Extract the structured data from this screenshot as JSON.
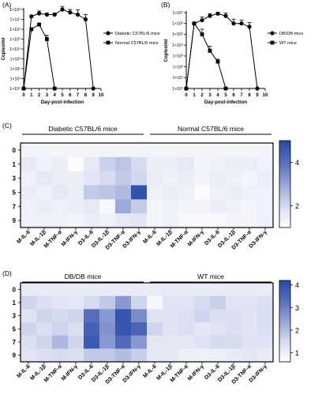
{
  "chart_data": [
    {
      "panel": "(A)",
      "type": "line",
      "ylabel": "Copies/ml",
      "xlabel": "Day-post-infection",
      "x_ticks": [
        "0",
        "1",
        "2",
        "3",
        "4",
        "5",
        "6",
        "7",
        "8",
        "9",
        "10"
      ],
      "y_tick_labels": [
        "1×10⁰",
        "1×10¹",
        "1×10²",
        "1×10³",
        "1×10⁴",
        "1×10⁵",
        "1×10⁶",
        "1×10⁷",
        "1×10⁸"
      ],
      "y_scale": "log10",
      "ylim": [
        1,
        100000000
      ],
      "xlim": [
        0,
        10
      ],
      "legend_position": "right",
      "series": [
        {
          "name": "Diabetic C57BL/6 mice",
          "marker": "circle",
          "x": [
            0,
            1,
            2,
            3,
            4,
            5,
            6,
            7,
            8,
            9
          ],
          "y": [
            1,
            20000000,
            40000000,
            30000000,
            30000000,
            100000000,
            50000000,
            30000000,
            10000000,
            1
          ],
          "err": [
            0,
            0,
            30000000,
            15000000,
            15000000,
            100000000,
            50000000,
            60000000,
            20000000,
            0
          ]
        },
        {
          "name": "Normal C57BL/6 mice",
          "marker": "square",
          "x": [
            0,
            1,
            2,
            3,
            4
          ],
          "y": [
            1,
            1000000,
            3000000,
            100000,
            1
          ],
          "err": [
            0,
            0,
            1000000,
            150000,
            0
          ]
        }
      ]
    },
    {
      "panel": "(B)",
      "type": "line",
      "ylabel": "Copies/ml",
      "xlabel": "Day-post-infection",
      "x_ticks": [
        "0",
        "1",
        "2",
        "3",
        "4",
        "5",
        "6",
        "7",
        "8",
        "9",
        "10"
      ],
      "y_tick_labels": [
        "1×10⁰",
        "1×10¹",
        "1×10²",
        "1×10³",
        "1×10⁴",
        "1×10⁵",
        "1×10⁶",
        "1×10⁷"
      ],
      "y_scale": "log10",
      "ylim": [
        1,
        10000000
      ],
      "xlim": [
        0,
        10
      ],
      "legend_position": "right",
      "series": [
        {
          "name": "DB/DB mice",
          "marker": "circle",
          "x": [
            0,
            1,
            2,
            3,
            4,
            5,
            6,
            7,
            8,
            9
          ],
          "y": [
            1,
            1000000,
            2000000,
            5000000,
            8000000,
            5000000,
            1000000,
            1000000,
            500000,
            1
          ],
          "err": [
            0,
            0,
            2000000,
            3000000,
            3000000,
            4000000,
            1500000,
            1000000,
            700000,
            0
          ]
        },
        {
          "name": "WT mice",
          "marker": "square",
          "x": [
            0,
            1,
            2,
            3,
            4,
            5
          ],
          "y": [
            1,
            1000000,
            100000,
            3000,
            300,
            1
          ],
          "err": [
            0,
            0,
            200000,
            5000,
            200,
            0
          ]
        }
      ]
    },
    {
      "panel": "(C)",
      "type": "heatmap",
      "group_labels": [
        "Diabetic C57BL/6 mice",
        "Normal C57BL/6 mice"
      ],
      "rows": [
        "0",
        "1",
        "3",
        "5",
        "7",
        "9"
      ],
      "columns": [
        "M-IL-6",
        "M-IL-1β",
        "M-TNF-α",
        "M-IFN-γ",
        "D3-IL-6",
        "D3-IL-1β",
        "D3-TNF-α",
        "D3-IFN-γ",
        "M-IL-6",
        "M-IL-1β",
        "M-TNF-α",
        "M-IFN-γ",
        "D3-IL-6",
        "D3-IL-1β",
        "D3-TNF-α",
        "D3-IFN-γ"
      ],
      "values": [
        [
          1.3,
          1.3,
          1.3,
          1.3,
          1.3,
          1.3,
          1.3,
          1.3,
          1.3,
          1.3,
          1.3,
          1.3,
          1.3,
          1.3,
          1.3,
          1.3
        ],
        [
          1.6,
          1.4,
          1.5,
          1.1,
          1.6,
          2.2,
          2.4,
          2.0,
          1.5,
          1.5,
          1.6,
          1.3,
          1.4,
          1.5,
          1.5,
          1.4
        ],
        [
          1.4,
          1.6,
          1.5,
          1.5,
          1.7,
          2.0,
          2.3,
          2.1,
          1.5,
          1.4,
          1.5,
          1.3,
          1.5,
          1.4,
          1.3,
          1.5
        ],
        [
          1.5,
          1.4,
          1.6,
          1.5,
          2.3,
          2.4,
          2.6,
          4.8,
          1.4,
          1.5,
          1.4,
          1.1,
          1.4,
          1.5,
          1.4,
          1.4
        ],
        [
          1.4,
          1.5,
          1.4,
          1.5,
          1.6,
          1.2,
          2.9,
          2.3,
          1.3,
          1.4,
          1.3,
          1.3,
          1.5,
          1.4,
          1.3,
          1.4
        ],
        [
          1.4,
          1.4,
          1.4,
          1.3,
          1.5,
          1.4,
          1.6,
          1.7,
          1.3,
          1.4,
          1.2,
          1.2,
          1.2,
          1.3,
          1.3,
          1.4
        ]
      ],
      "colorbar_ticks": [
        "2",
        "4"
      ],
      "vmin": 1.0,
      "vmax": 5.0
    },
    {
      "panel": "(D)",
      "type": "heatmap",
      "group_labels": [
        "DB/DB mice",
        "WT mice"
      ],
      "rows": [
        "0",
        "1",
        "3",
        "5",
        "7",
        "9"
      ],
      "columns": [
        "M-IL-6",
        "M-IL-1β",
        "M-TNF-α",
        "M-IFN-γ",
        "D3-IL-6",
        "D3-IL-1β",
        "D3-TNF-α",
        "D3-IFN-γ",
        "M-IL-6",
        "M-IL-1β",
        "M-TNF-α",
        "M-IFN-γ",
        "D3-IL-6",
        "D3-IL-1β",
        "D3-TNF-α",
        "D3-IFN-γ"
      ],
      "values": [
        [
          1.1,
          1.1,
          1.1,
          1.1,
          1.1,
          1.1,
          1.1,
          1.1,
          1.1,
          1.1,
          1.1,
          1.1,
          1.1,
          1.1,
          1.1,
          1.1
        ],
        [
          1.6,
          1.4,
          1.3,
          1.2,
          1.5,
          1.8,
          2.6,
          1.6,
          0.8,
          1.3,
          1.3,
          1.5,
          1.7,
          1.3,
          1.3,
          1.4
        ],
        [
          1.3,
          1.6,
          1.5,
          1.6,
          3.3,
          2.6,
          3.9,
          2.8,
          1.3,
          1.3,
          1.4,
          1.6,
          1.4,
          1.4,
          1.3,
          1.4
        ],
        [
          1.6,
          1.4,
          1.6,
          1.4,
          3.6,
          2.7,
          3.9,
          3.5,
          1.6,
          1.3,
          1.4,
          1.2,
          1.3,
          1.4,
          1.3,
          1.4
        ],
        [
          1.4,
          1.6,
          2.1,
          1.6,
          3.8,
          2.6,
          3.4,
          2.6,
          1.2,
          1.2,
          1.2,
          1.3,
          1.5,
          1.5,
          1.3,
          1.3
        ],
        [
          1.3,
          1.4,
          1.5,
          1.4,
          1.8,
          1.8,
          2.0,
          1.7,
          1.2,
          1.2,
          1.0,
          1.0,
          1.0,
          1.1,
          1.2,
          1.1
        ]
      ],
      "colorbar_ticks": [
        "1",
        "2",
        "3",
        "4"
      ],
      "vmin": 0.6,
      "vmax": 4.2
    }
  ]
}
